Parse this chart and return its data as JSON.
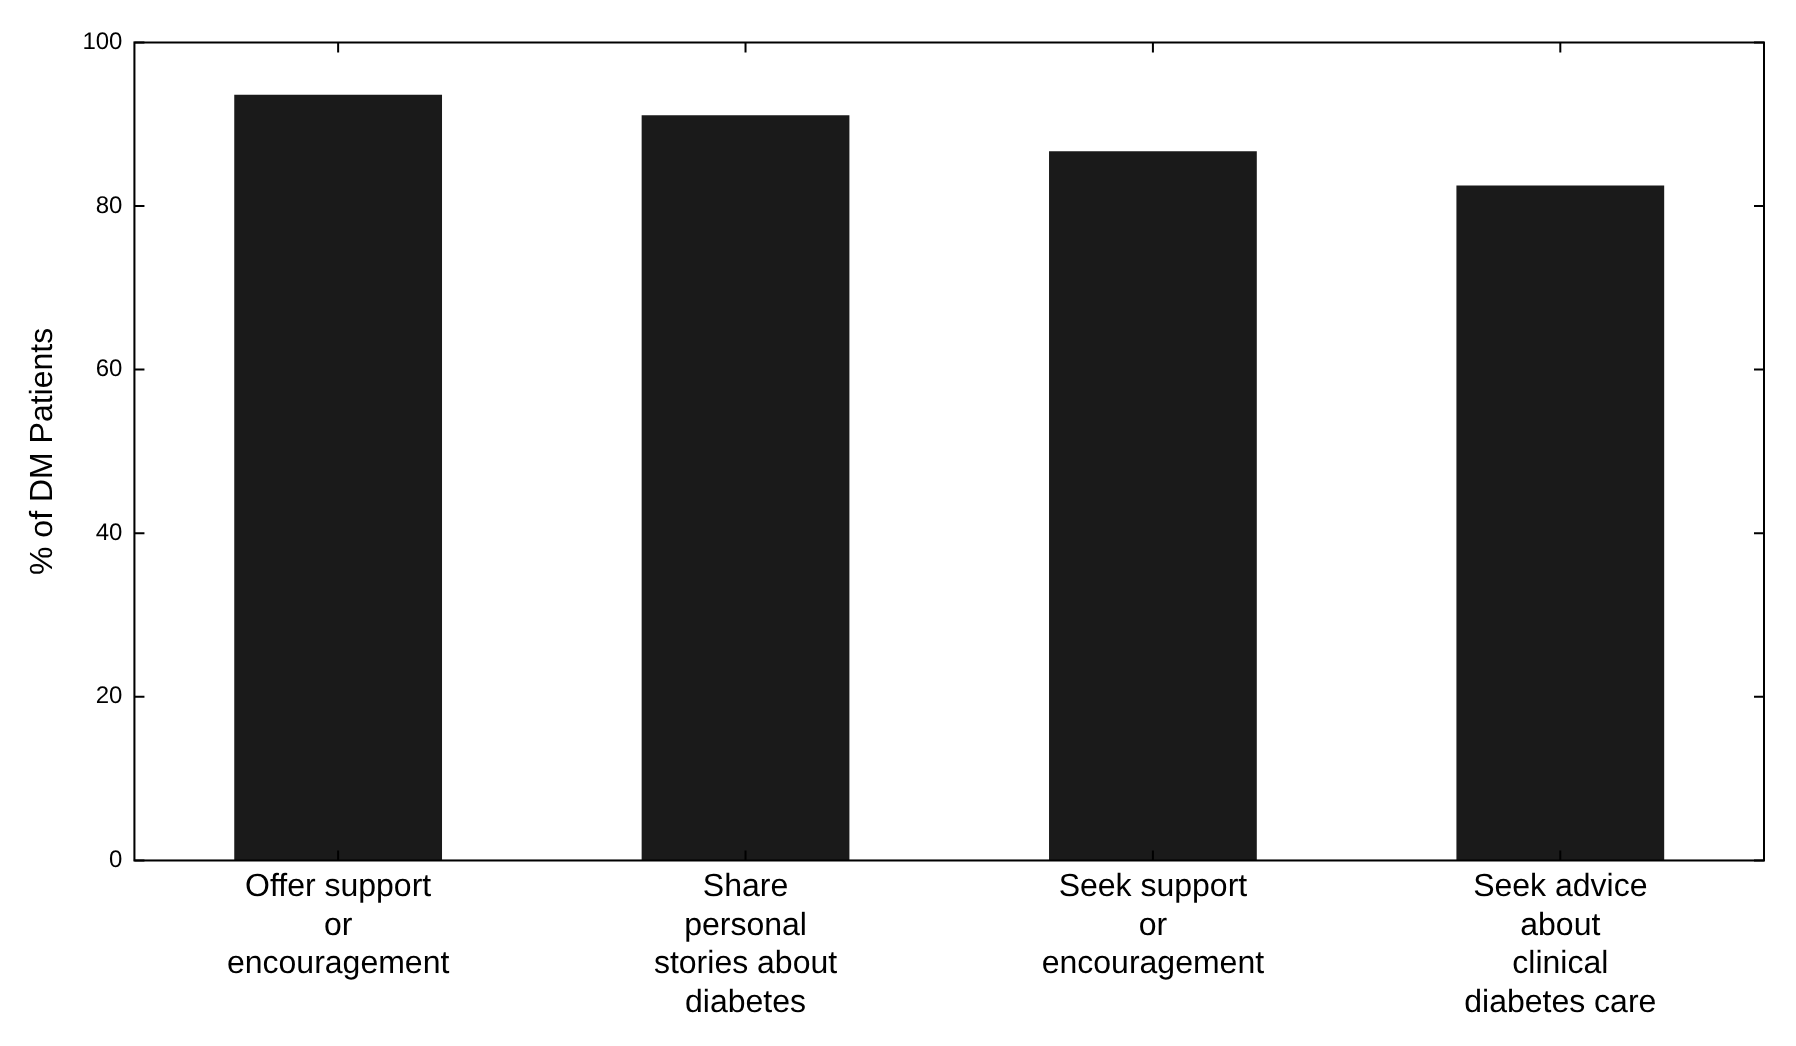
{
  "chart_data": {
    "type": "bar",
    "ylabel": "% of DM Patients",
    "categories": [
      "Offer support\nor\nencouragement",
      "Share\npersonal\nstories about\ndiabetes",
      "Seek support\nor\nencouragement",
      "Seek advice\nabout\nclinical\ndiabetes care"
    ],
    "values": [
      93.6,
      91.1,
      86.7,
      82.5
    ],
    "color": "#1a1a1a",
    "ylim": [
      0,
      100
    ],
    "yticks": [
      0,
      20,
      40,
      60,
      80,
      100
    ],
    "grid": false,
    "legend": false
  }
}
